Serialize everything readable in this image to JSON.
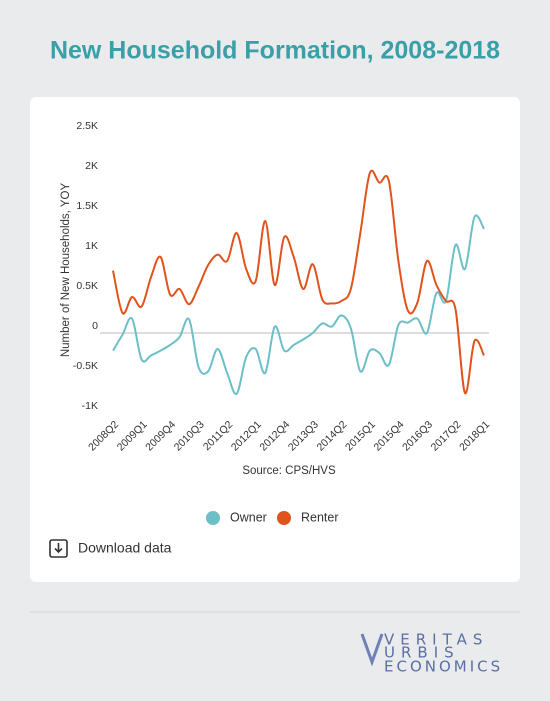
{
  "chart_data": {
    "type": "line",
    "title": "New Household Formation, 2008-2018",
    "y_label": "Number of New Households, YOY",
    "x_label": "Source: CPS/HVS",
    "categories": [
      "2008Q2",
      null,
      null,
      "2009Q1",
      null,
      null,
      "2009Q4",
      null,
      null,
      "2010Q3",
      null,
      null,
      "2011Q2",
      null,
      null,
      "2012Q1",
      null,
      null,
      "2012Q4",
      null,
      null,
      "2013Q3",
      null,
      null,
      "2014Q2",
      null,
      null,
      "2015Q1",
      null,
      null,
      "2015Q4",
      null,
      null,
      "2016Q3",
      null,
      null,
      "2017Q2",
      null,
      null,
      "2018Q1"
    ],
    "series": [
      {
        "name": "Owner",
        "color": "#6cbfc6",
        "values": [
          -220,
          -20,
          180,
          -330,
          -280,
          -220,
          -150,
          -50,
          170,
          -430,
          -480,
          -200,
          -500,
          -760,
          -300,
          -200,
          -500,
          80,
          -220,
          -150,
          -80,
          0,
          120,
          80,
          220,
          60,
          -480,
          -220,
          -250,
          -400,
          100,
          130,
          180,
          0,
          500,
          400,
          1100,
          800,
          1450,
          1300
        ]
      },
      {
        "name": "Renter",
        "color": "#e0531c",
        "values": [
          780,
          250,
          450,
          330,
          700,
          950,
          480,
          550,
          360,
          580,
          850,
          980,
          900,
          1250,
          800,
          650,
          1400,
          600,
          1200,
          950,
          550,
          860,
          420,
          370,
          400,
          550,
          1250,
          2000,
          1880,
          1900,
          900,
          280,
          380,
          900,
          600,
          400,
          300,
          -750,
          -100,
          -280
        ]
      }
    ],
    "ylim": [
      -1000,
      2500
    ],
    "yticks": [
      {
        "value": 2500,
        "label": "2.5K"
      },
      {
        "value": 2000,
        "label": "2K"
      },
      {
        "value": 1500,
        "label": "1.5K"
      },
      {
        "value": 1000,
        "label": "1K"
      },
      {
        "value": 500,
        "label": "0.5K"
      },
      0,
      {
        "value": -500,
        "label": "-0.5K"
      },
      {
        "value": -1000,
        "label": "-1K"
      }
    ],
    "grid": false,
    "legend": "bottom"
  },
  "download": "Download data",
  "logo": {
    "lines": [
      "VERITAS",
      "URBIS",
      "ECONOMICS"
    ]
  }
}
